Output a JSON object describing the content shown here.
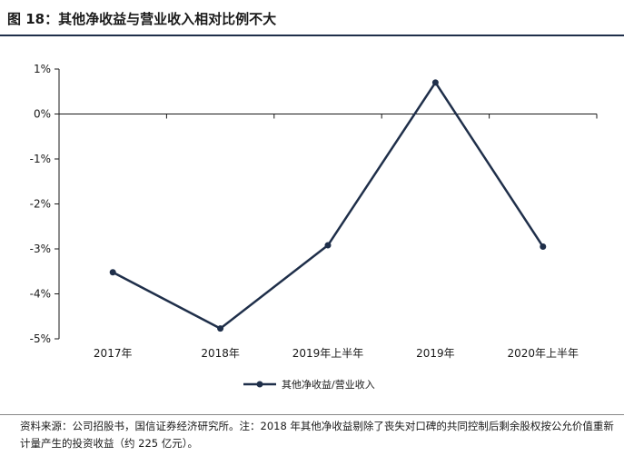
{
  "figure": {
    "title": "图 18：其他净收益与营业收入相对比例不大",
    "source_note": "资料来源：公司招股书，国信证券经济研究所。注：2018 年其他净收益剔除了丧失对口碑的共同控制后剩余股权按公允价值重新计量产生的投资收益（约 225 亿元）。"
  },
  "chart_data": {
    "type": "line",
    "title": "",
    "xlabel": "",
    "ylabel": "",
    "categories": [
      "2017年",
      "2018年",
      "2019年上半年",
      "2019年",
      "2020年上半年"
    ],
    "series": [
      {
        "name": "其他净收益/营业收入",
        "values": [
          -3.52,
          -4.77,
          -2.92,
          0.7,
          -2.95
        ],
        "color": "#1f2f4a"
      }
    ],
    "ylim": [
      -5,
      1
    ],
    "yticks": [
      1,
      0,
      -1,
      -2,
      -3,
      -4,
      -5
    ],
    "ytick_labels": [
      "1%",
      "0%",
      "-1%",
      "-2%",
      "-3%",
      "-4%",
      "-5%"
    ],
    "grid": false,
    "legend_position": "bottom"
  }
}
